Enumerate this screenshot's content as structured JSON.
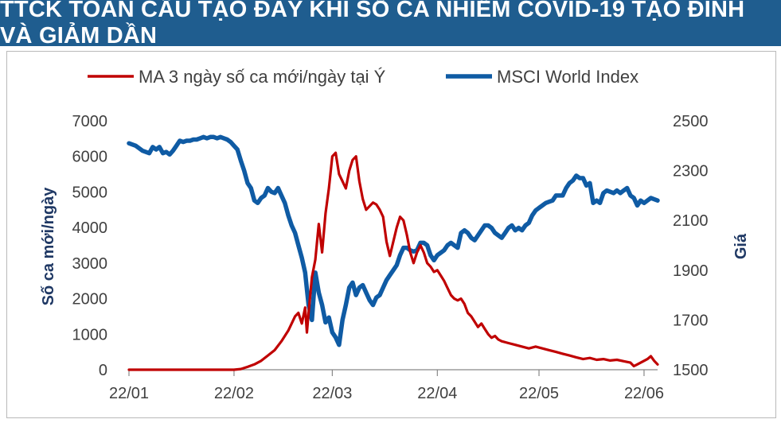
{
  "title": "TTCK TOÀN CẦU TẠO ĐÁY KHI SỐ CA NHIỄM COVID-19 TẠO ĐỈNH VÀ GIẢM DẦN",
  "colors": {
    "title_bg": "#1f5d8f",
    "red_series": "#c00000",
    "blue_series": "#0f5ba4",
    "axis_title": "#1f3864",
    "tick_text": "#404040"
  },
  "chart_data": {
    "type": "line",
    "title": "TTCK TOÀN CẦU TẠO ĐÁY KHI SỐ CA NHIỄM COVID-19 TẠO ĐỈNH VÀ GIẢM DẦN",
    "legend_position": "top",
    "grid": false,
    "xlabel": "",
    "x_ticks": [
      "22/01",
      "22/02",
      "22/03",
      "22/04",
      "22/05",
      "22/06"
    ],
    "x_tick_days": [
      0,
      31,
      60,
      91,
      121,
      152
    ],
    "xlim_days": [
      0,
      156
    ],
    "y_left": {
      "label": "Số ca mới/ngày",
      "ylim": [
        0,
        7000
      ],
      "ticks": [
        "0",
        "1000",
        "2000",
        "3000",
        "4000",
        "5000",
        "6000",
        "7000"
      ]
    },
    "y_right": {
      "label": "Giá",
      "ylim": [
        1500,
        2500
      ],
      "ticks": [
        "1500",
        "1700",
        "1900",
        "2100",
        "2300",
        "2500"
      ]
    },
    "series": [
      {
        "name": "MA 3 ngày số ca mới/ngày tại Ý",
        "axis": "left",
        "color": "#c00000",
        "points": [
          [
            0,
            0
          ],
          [
            20,
            0
          ],
          [
            31,
            0
          ],
          [
            33,
            20
          ],
          [
            35,
            80
          ],
          [
            37,
            150
          ],
          [
            39,
            250
          ],
          [
            41,
            400
          ],
          [
            43,
            550
          ],
          [
            45,
            800
          ],
          [
            47,
            1100
          ],
          [
            49,
            1500
          ],
          [
            50,
            1600
          ],
          [
            51,
            1300
          ],
          [
            52,
            1750
          ],
          [
            52.5,
            1050
          ],
          [
            53,
            1600
          ],
          [
            54,
            2600
          ],
          [
            55,
            3100
          ],
          [
            56,
            4100
          ],
          [
            57,
            3300
          ],
          [
            58,
            4400
          ],
          [
            59,
            5100
          ],
          [
            60,
            6000
          ],
          [
            61,
            6100
          ],
          [
            62,
            5500
          ],
          [
            63,
            5300
          ],
          [
            64,
            5100
          ],
          [
            65,
            5600
          ],
          [
            66,
            5900
          ],
          [
            67,
            6000
          ],
          [
            68,
            5300
          ],
          [
            69,
            4800
          ],
          [
            70,
            4500
          ],
          [
            71,
            4600
          ],
          [
            72,
            4700
          ],
          [
            73,
            4650
          ],
          [
            74,
            4500
          ],
          [
            75,
            4300
          ],
          [
            76,
            3600
          ],
          [
            77,
            3200
          ],
          [
            78,
            3600
          ],
          [
            79,
            4000
          ],
          [
            80,
            4300
          ],
          [
            81,
            4200
          ],
          [
            82,
            3800
          ],
          [
            83,
            3300
          ],
          [
            84,
            3000
          ],
          [
            85,
            3300
          ],
          [
            86,
            3500
          ],
          [
            87,
            3300
          ],
          [
            88,
            3000
          ],
          [
            89,
            2900
          ],
          [
            90,
            2750
          ],
          [
            91,
            2800
          ],
          [
            92,
            2650
          ],
          [
            93,
            2500
          ],
          [
            94,
            2300
          ],
          [
            95,
            2100
          ],
          [
            96,
            2000
          ],
          [
            97,
            1950
          ],
          [
            98,
            2000
          ],
          [
            99,
            1850
          ],
          [
            100,
            1600
          ],
          [
            101,
            1500
          ],
          [
            102,
            1350
          ],
          [
            103,
            1200
          ],
          [
            104,
            1300
          ],
          [
            105,
            1150
          ],
          [
            106,
            1000
          ],
          [
            107,
            900
          ],
          [
            108,
            950
          ],
          [
            109,
            850
          ],
          [
            110,
            800
          ],
          [
            112,
            750
          ],
          [
            114,
            700
          ],
          [
            116,
            650
          ],
          [
            118,
            600
          ],
          [
            120,
            650
          ],
          [
            122,
            600
          ],
          [
            124,
            550
          ],
          [
            126,
            500
          ],
          [
            128,
            450
          ],
          [
            130,
            400
          ],
          [
            132,
            350
          ],
          [
            134,
            300
          ],
          [
            136,
            330
          ],
          [
            138,
            280
          ],
          [
            140,
            300
          ],
          [
            142,
            260
          ],
          [
            144,
            280
          ],
          [
            146,
            240
          ],
          [
            148,
            200
          ],
          [
            149,
            100
          ],
          [
            150,
            150
          ],
          [
            152,
            250
          ],
          [
            153,
            300
          ],
          [
            154,
            380
          ],
          [
            155,
            250
          ],
          [
            156,
            150
          ]
        ]
      },
      {
        "name": "MSCI World Index",
        "axis": "right",
        "color": "#0f5ba4",
        "points": [
          [
            0,
            2410
          ],
          [
            2,
            2400
          ],
          [
            4,
            2380
          ],
          [
            6,
            2370
          ],
          [
            7,
            2395
          ],
          [
            8,
            2385
          ],
          [
            9,
            2395
          ],
          [
            10,
            2370
          ],
          [
            11,
            2375
          ],
          [
            12,
            2365
          ],
          [
            13,
            2380
          ],
          [
            14,
            2400
          ],
          [
            15,
            2420
          ],
          [
            16,
            2415
          ],
          [
            17,
            2420
          ],
          [
            18,
            2420
          ],
          [
            19,
            2425
          ],
          [
            20,
            2425
          ],
          [
            21,
            2430
          ],
          [
            22,
            2435
          ],
          [
            23,
            2430
          ],
          [
            24,
            2435
          ],
          [
            25,
            2435
          ],
          [
            26,
            2430
          ],
          [
            27,
            2435
          ],
          [
            28,
            2430
          ],
          [
            29,
            2425
          ],
          [
            30,
            2415
          ],
          [
            31,
            2400
          ],
          [
            32,
            2385
          ],
          [
            33,
            2340
          ],
          [
            34,
            2300
          ],
          [
            35,
            2250
          ],
          [
            36,
            2230
          ],
          [
            37,
            2180
          ],
          [
            38,
            2170
          ],
          [
            39,
            2190
          ],
          [
            40,
            2200
          ],
          [
            41,
            2230
          ],
          [
            42,
            2215
          ],
          [
            43,
            2210
          ],
          [
            44,
            2230
          ],
          [
            45,
            2200
          ],
          [
            46,
            2170
          ],
          [
            47,
            2120
          ],
          [
            48,
            2080
          ],
          [
            49,
            2050
          ],
          [
            50,
            2000
          ],
          [
            51,
            1950
          ],
          [
            52,
            1890
          ],
          [
            53,
            1760
          ],
          [
            54,
            1700
          ],
          [
            55,
            1890
          ],
          [
            56,
            1810
          ],
          [
            57,
            1760
          ],
          [
            58,
            1690
          ],
          [
            59,
            1710
          ],
          [
            60,
            1650
          ],
          [
            61,
            1630
          ],
          [
            62,
            1600
          ],
          [
            63,
            1700
          ],
          [
            64,
            1760
          ],
          [
            65,
            1830
          ],
          [
            66,
            1850
          ],
          [
            67,
            1800
          ],
          [
            68,
            1830
          ],
          [
            69,
            1840
          ],
          [
            70,
            1810
          ],
          [
            71,
            1780
          ],
          [
            72,
            1760
          ],
          [
            73,
            1790
          ],
          [
            74,
            1800
          ],
          [
            75,
            1830
          ],
          [
            76,
            1860
          ],
          [
            77,
            1880
          ],
          [
            78,
            1900
          ],
          [
            79,
            1920
          ],
          [
            80,
            1960
          ],
          [
            81,
            1990
          ],
          [
            82,
            1990
          ],
          [
            83,
            1980
          ],
          [
            84,
            1975
          ],
          [
            85,
            1980
          ],
          [
            86,
            2010
          ],
          [
            87,
            2010
          ],
          [
            88,
            2000
          ],
          [
            89,
            1960
          ],
          [
            90,
            1940
          ],
          [
            91,
            1960
          ],
          [
            92,
            1970
          ],
          [
            93,
            1980
          ],
          [
            94,
            2000
          ],
          [
            95,
            2010
          ],
          [
            96,
            2000
          ],
          [
            97,
            1990
          ],
          [
            98,
            2050
          ],
          [
            99,
            2060
          ],
          [
            100,
            2050
          ],
          [
            101,
            2030
          ],
          [
            102,
            2020
          ],
          [
            103,
            2040
          ],
          [
            104,
            2060
          ],
          [
            105,
            2080
          ],
          [
            106,
            2080
          ],
          [
            107,
            2070
          ],
          [
            108,
            2050
          ],
          [
            109,
            2040
          ],
          [
            110,
            2030
          ],
          [
            111,
            2050
          ],
          [
            112,
            2070
          ],
          [
            113,
            2080
          ],
          [
            114,
            2060
          ],
          [
            115,
            2070
          ],
          [
            116,
            2060
          ],
          [
            117,
            2080
          ],
          [
            118,
            2090
          ],
          [
            119,
            2120
          ],
          [
            120,
            2140
          ],
          [
            121,
            2150
          ],
          [
            122,
            2160
          ],
          [
            123,
            2170
          ],
          [
            124,
            2175
          ],
          [
            125,
            2180
          ],
          [
            126,
            2200
          ],
          [
            127,
            2200
          ],
          [
            128,
            2200
          ],
          [
            129,
            2230
          ],
          [
            130,
            2250
          ],
          [
            131,
            2260
          ],
          [
            132,
            2280
          ],
          [
            133,
            2270
          ],
          [
            134,
            2270
          ],
          [
            135,
            2240
          ],
          [
            136,
            2250
          ],
          [
            137,
            2170
          ],
          [
            138,
            2180
          ],
          [
            139,
            2170
          ],
          [
            140,
            2210
          ],
          [
            141,
            2220
          ],
          [
            142,
            2215
          ],
          [
            143,
            2210
          ],
          [
            144,
            2220
          ],
          [
            145,
            2210
          ],
          [
            146,
            2220
          ],
          [
            147,
            2230
          ],
          [
            148,
            2200
          ],
          [
            149,
            2190
          ],
          [
            150,
            2160
          ],
          [
            151,
            2180
          ],
          [
            152,
            2170
          ],
          [
            153,
            2180
          ],
          [
            154,
            2190
          ],
          [
            155,
            2185
          ],
          [
            156,
            2180
          ]
        ]
      }
    ]
  }
}
